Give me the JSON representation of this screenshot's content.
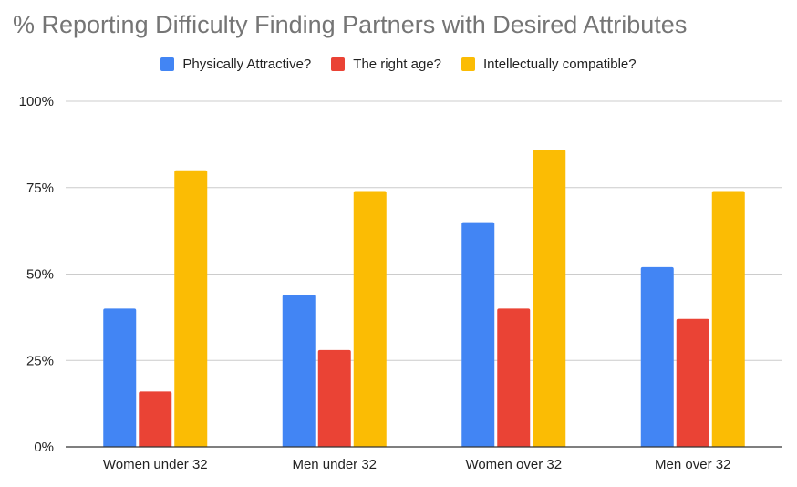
{
  "chart_data": {
    "type": "bar",
    "title": "% Reporting Difficulty Finding Partners with Desired Attributes",
    "categories": [
      "Women under 32",
      "Men under 32",
      "Women over 32",
      "Men over 32"
    ],
    "series": [
      {
        "name": "Physically Attractive?",
        "color": "#4285f4",
        "values": [
          40,
          44,
          65,
          52
        ]
      },
      {
        "name": "The right age?",
        "color": "#ea4335",
        "values": [
          16,
          28,
          40,
          37
        ]
      },
      {
        "name": "Intellectually compatible?",
        "color": "#fbbc04",
        "values": [
          80,
          74,
          86,
          74
        ]
      }
    ],
    "yticks": [
      {
        "value": 0,
        "label": "0%"
      },
      {
        "value": 25,
        "label": "25%"
      },
      {
        "value": 50,
        "label": "50%"
      },
      {
        "value": 75,
        "label": "75%"
      },
      {
        "value": 100,
        "label": "100%"
      }
    ],
    "ylim": [
      0,
      100
    ],
    "grid": true,
    "legend_position": "top-center"
  }
}
